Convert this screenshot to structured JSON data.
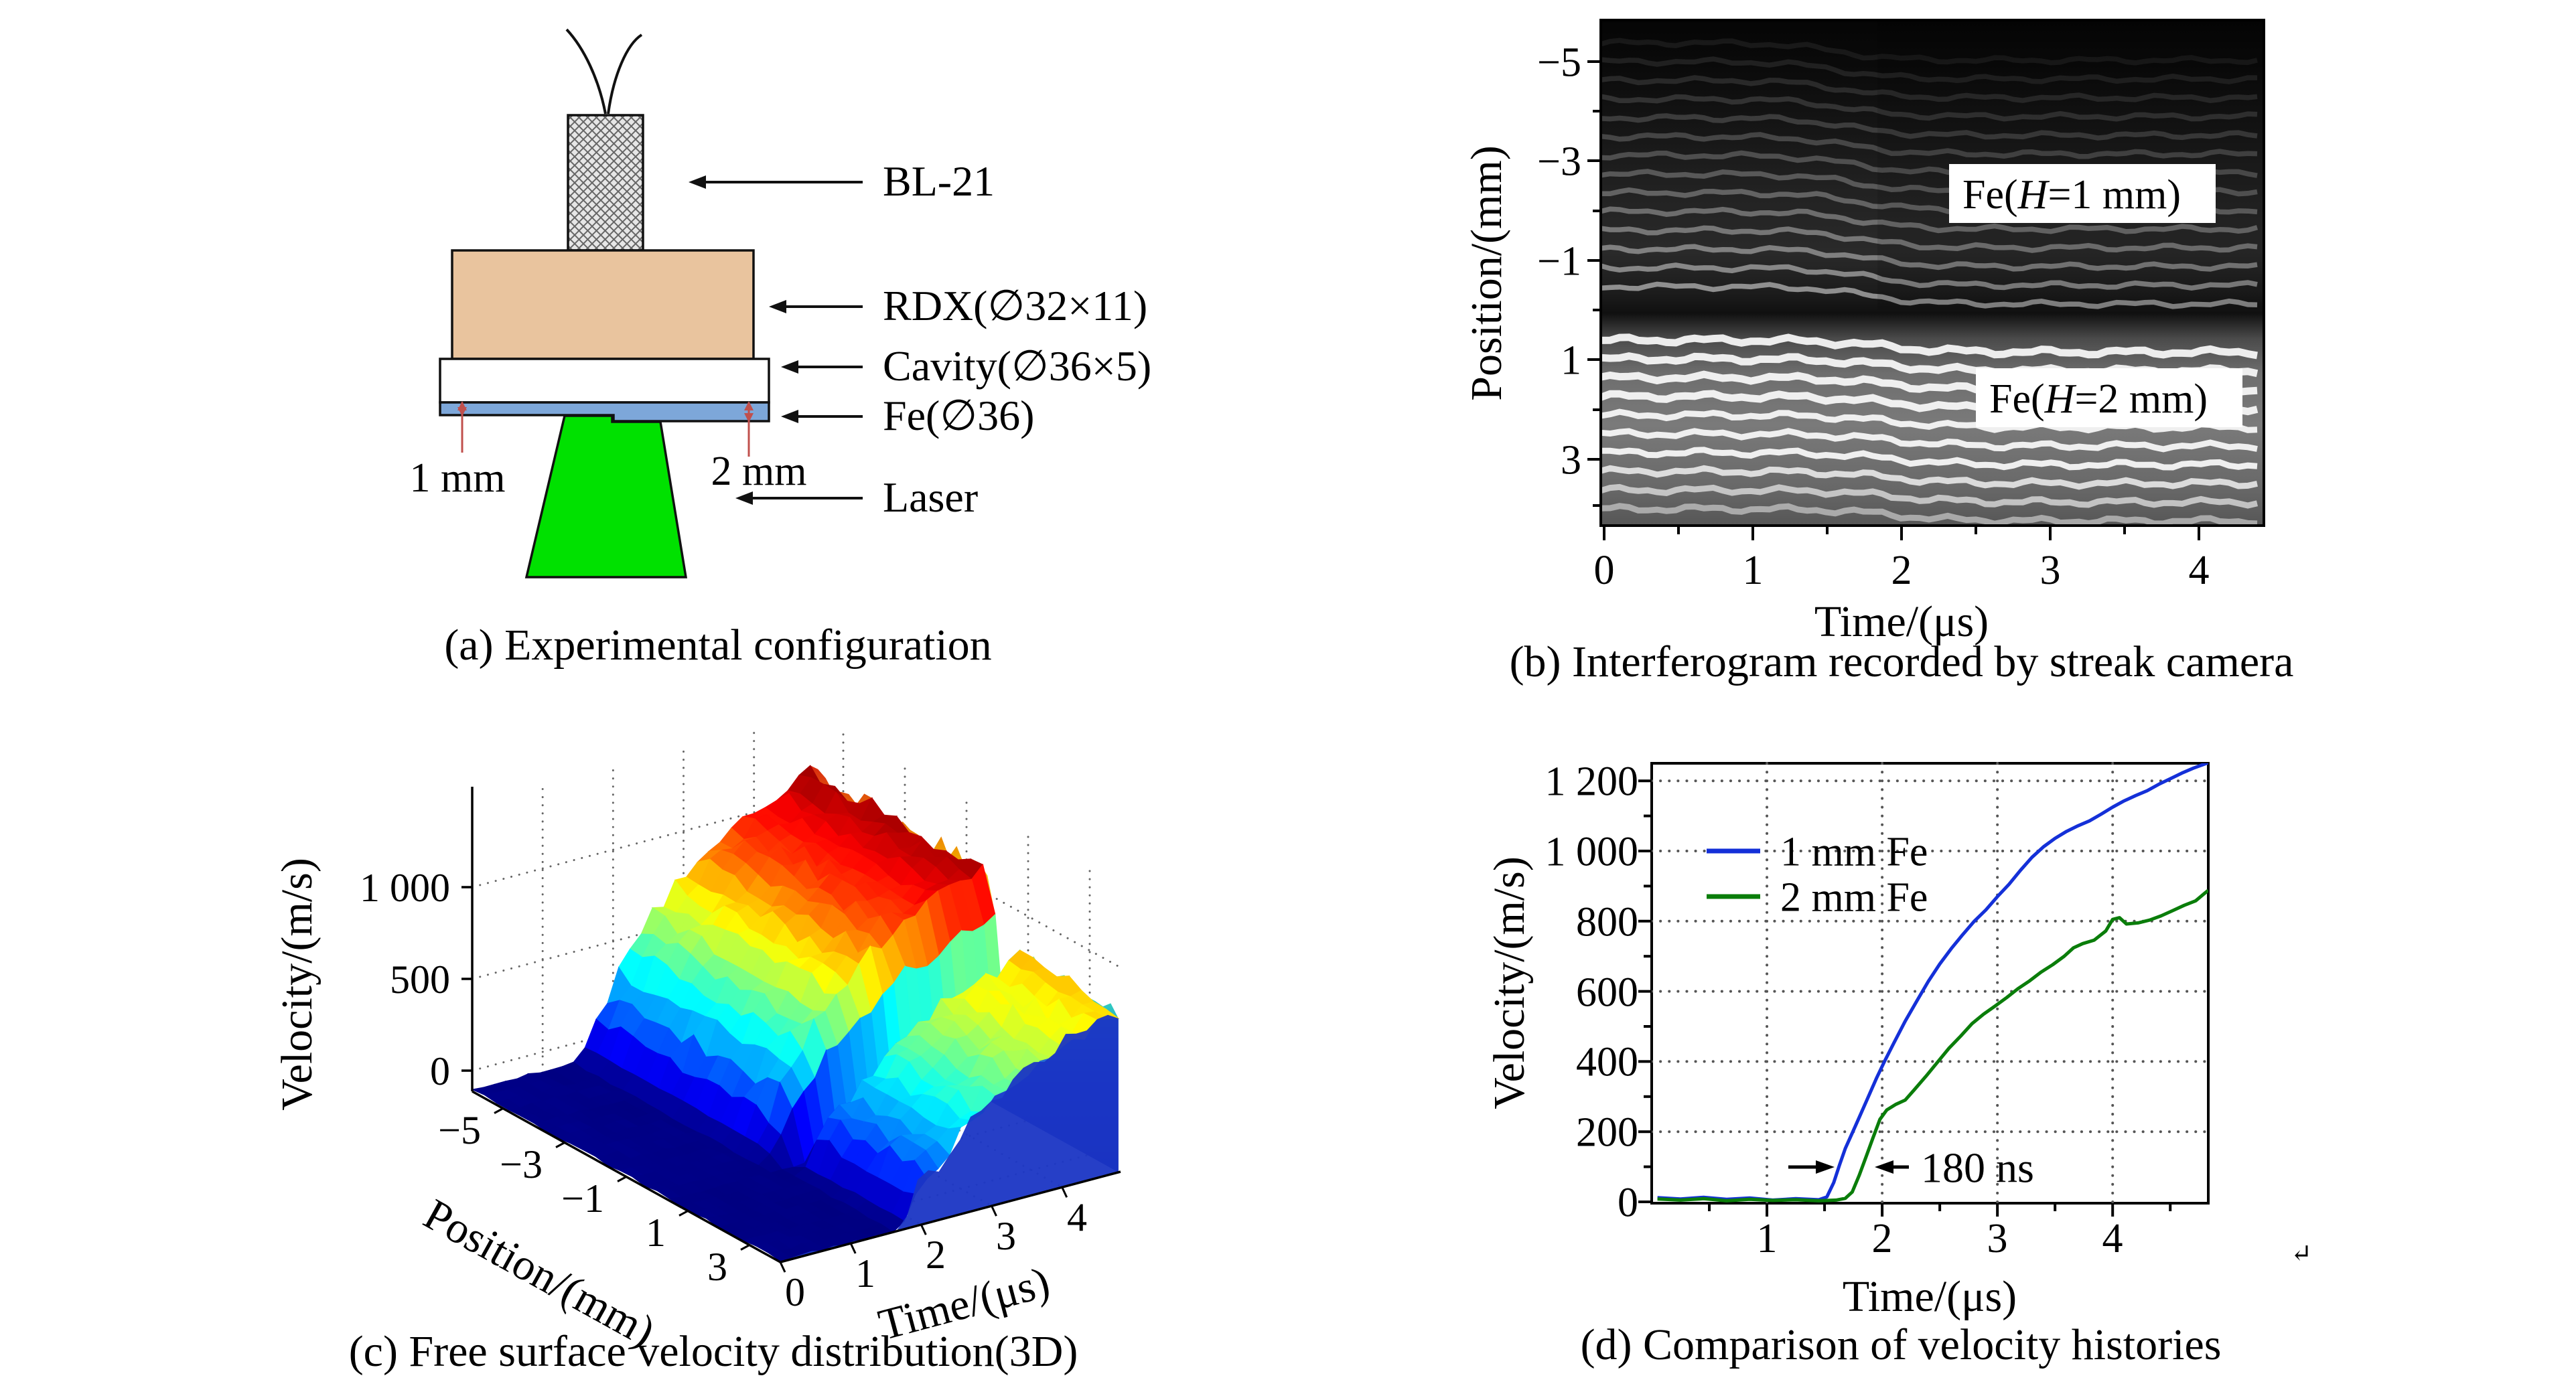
{
  "figure": {
    "background": "#ffffff",
    "panel_a": {
      "caption": "(a) Experimental configuration",
      "component_labels": {
        "detonator": "BL-21",
        "explosive": "RDX(∅32×11)",
        "cavity": "Cavity(∅36×5)",
        "sample": "Fe(∅36)",
        "laser": "Laser"
      },
      "dimensions": {
        "left": "1 mm",
        "right": "2 mm"
      },
      "colors": {
        "explosive": "#e9c49e",
        "sample": "#7da7d9",
        "laser": "#00e100",
        "dimension_marks": "#c0504d",
        "detonator_hatch": "#e6e6e6"
      }
    },
    "panel_b": {
      "caption": "(b) Interferogram recorded by streak camera",
      "xlabel": "Time/(μs)",
      "ylabel": "Position/(mm)",
      "xticks": [
        "0",
        "1",
        "2",
        "3",
        "4"
      ],
      "yticks": [
        "−5",
        "−3",
        "−1",
        "1",
        "3"
      ],
      "overlays": {
        "top": {
          "prefix": "Fe(",
          "variable": "H",
          "suffix": "=1 mm)"
        },
        "bottom": {
          "prefix": "Fe(",
          "variable": "H",
          "suffix": "=2 mm)"
        }
      }
    },
    "panel_c": {
      "caption": "(c) Free surface velocity distribution(3D)",
      "zlabel": "Velocity/(m/s)",
      "xlabel": "Position/(mm)",
      "tlabel": "Time/(μs)",
      "zticks": [
        "0",
        "500",
        "1 000"
      ],
      "position_ticks": [
        "−5",
        "−3",
        "−1",
        "1",
        "3"
      ],
      "time_ticks": [
        "0",
        "1",
        "2",
        "3",
        "4"
      ]
    },
    "panel_d": {
      "caption": "(d) Comparison of velocity histories",
      "xlabel": "Time/(μs)",
      "ylabel": "Velocity/(m/s)",
      "xticks": [
        "1",
        "2",
        "3",
        "4"
      ],
      "yticks": [
        "0",
        "200",
        "400",
        "600",
        "800",
        "1 000",
        "1 200"
      ],
      "stray_mark": "↵"
    }
  },
  "chart_data": [
    {
      "panel": "b",
      "type": "heatmap",
      "xlabel": "Time/(μs)",
      "ylabel": "Position/(mm)",
      "xlim": [
        0,
        4.45
      ],
      "ylim": [
        -5.8,
        4.3
      ],
      "xticks": [
        0,
        1,
        2,
        3,
        4
      ],
      "yticks": [
        -5,
        -3,
        -1,
        1,
        3
      ],
      "description": "Grayscale streak-camera interferogram: horizontal interference fringes vs time. Fringes of the Fe H=1 mm half (upper, darker) kink at ≈1.6 μs; fringes of the Fe H=2 mm half (lower, brighter) kink at ≈1.9 μs.",
      "fringe_shift_time_us": {
        "h1mm": 1.63,
        "h2mm": 1.9
      }
    },
    {
      "panel": "c",
      "type": "surface",
      "xlabel": "Position/(mm)",
      "ylabel": "Time/(μs)",
      "zlabel": "Velocity/(m/s)",
      "xlim": [
        -6,
        4
      ],
      "ylim": [
        0,
        4.83
      ],
      "zlim": [
        0,
        1300
      ],
      "zticks": [
        0,
        500,
        1000
      ],
      "position_ticks": [
        -5,
        -3,
        -1,
        1,
        3
      ],
      "time_ticks": [
        0,
        1,
        2,
        3,
        4
      ],
      "colormap": "jet",
      "valley_position_mm": 0.3,
      "surface_summary": {
        "positions_mm": [
          -5,
          -3,
          -1,
          1,
          3
        ],
        "times_us": [
          0,
          1,
          2,
          3,
          4,
          4.8
        ],
        "velocity_m_s": [
          [
            0,
            0,
            390,
            845,
            1090,
            1240
          ],
          [
            0,
            0,
            400,
            855,
            1100,
            1250
          ],
          [
            0,
            0,
            405,
            860,
            1110,
            1255
          ],
          [
            0,
            0,
            270,
            600,
            800,
            885
          ],
          [
            0,
            0,
            260,
            590,
            790,
            875
          ]
        ]
      }
    },
    {
      "panel": "d",
      "type": "line",
      "xlabel": "Time/(μs)",
      "ylabel": "Velocity/(m/s)",
      "xlim": [
        0,
        4.83
      ],
      "ylim": [
        0,
        1250
      ],
      "xticks": [
        1,
        2,
        3,
        4
      ],
      "yticks": [
        0,
        200,
        400,
        600,
        800,
        1000,
        1200
      ],
      "grid": "dotted",
      "legend_position": "upper-left",
      "annotation": {
        "text": "180 ns",
        "y_m_s": 100,
        "between_times_us": [
          1.57,
          1.95
        ]
      },
      "series": [
        {
          "name": "1 mm Fe",
          "color": "#1430d8",
          "points": [
            [
              0.05,
              12
            ],
            [
              0.25,
              8
            ],
            [
              0.45,
              13
            ],
            [
              0.65,
              7
            ],
            [
              0.85,
              11
            ],
            [
              1.05,
              5
            ],
            [
              1.25,
              9
            ],
            [
              1.45,
              6
            ],
            [
              1.52,
              14
            ],
            [
              1.58,
              55
            ],
            [
              1.63,
              105
            ],
            [
              1.68,
              152
            ],
            [
              1.74,
              196
            ],
            [
              1.8,
              240
            ],
            [
              1.87,
              292
            ],
            [
              1.95,
              352
            ],
            [
              2.02,
              400
            ],
            [
              2.1,
              452
            ],
            [
              2.2,
              515
            ],
            [
              2.3,
              572
            ],
            [
              2.4,
              628
            ],
            [
              2.5,
              678
            ],
            [
              2.6,
              722
            ],
            [
              2.7,
              762
            ],
            [
              2.8,
              800
            ],
            [
              2.9,
              832
            ],
            [
              3.0,
              870
            ],
            [
              3.1,
              905
            ],
            [
              3.2,
              945
            ],
            [
              3.3,
              982
            ],
            [
              3.4,
              1012
            ],
            [
              3.5,
              1036
            ],
            [
              3.6,
              1056
            ],
            [
              3.7,
              1072
            ],
            [
              3.8,
              1086
            ],
            [
              3.9,
              1105
            ],
            [
              4.0,
              1125
            ],
            [
              4.1,
              1143
            ],
            [
              4.2,
              1158
            ],
            [
              4.3,
              1172
            ],
            [
              4.4,
              1190
            ],
            [
              4.5,
              1206
            ],
            [
              4.6,
              1222
            ],
            [
              4.7,
              1236
            ],
            [
              4.8,
              1248
            ],
            [
              4.83,
              1252
            ]
          ]
        },
        {
          "name": "2 mm Fe",
          "color": "#0a7d0a",
          "points": [
            [
              0.05,
              8
            ],
            [
              0.25,
              5
            ],
            [
              0.45,
              9
            ],
            [
              0.65,
              3
            ],
            [
              0.85,
              7
            ],
            [
              1.05,
              4
            ],
            [
              1.25,
              6
            ],
            [
              1.45,
              3
            ],
            [
              1.6,
              5
            ],
            [
              1.68,
              10
            ],
            [
              1.74,
              28
            ],
            [
              1.8,
              75
            ],
            [
              1.86,
              128
            ],
            [
              1.92,
              182
            ],
            [
              1.98,
              235
            ],
            [
              2.04,
              262
            ],
            [
              2.12,
              278
            ],
            [
              2.2,
              290
            ],
            [
              2.28,
              320
            ],
            [
              2.38,
              358
            ],
            [
              2.48,
              398
            ],
            [
              2.58,
              438
            ],
            [
              2.68,
              472
            ],
            [
              2.78,
              508
            ],
            [
              2.88,
              535
            ],
            [
              2.98,
              558
            ],
            [
              3.08,
              582
            ],
            [
              3.18,
              608
            ],
            [
              3.28,
              630
            ],
            [
              3.38,
              655
            ],
            [
              3.48,
              676
            ],
            [
              3.58,
              700
            ],
            [
              3.66,
              724
            ],
            [
              3.74,
              736
            ],
            [
              3.84,
              746
            ],
            [
              3.94,
              772
            ],
            [
              4.0,
              805
            ],
            [
              4.06,
              810
            ],
            [
              4.12,
              792
            ],
            [
              4.22,
              795
            ],
            [
              4.32,
              803
            ],
            [
              4.42,
              815
            ],
            [
              4.52,
              830
            ],
            [
              4.62,
              845
            ],
            [
              4.72,
              858
            ],
            [
              4.8,
              880
            ],
            [
              4.83,
              888
            ]
          ]
        }
      ]
    }
  ]
}
